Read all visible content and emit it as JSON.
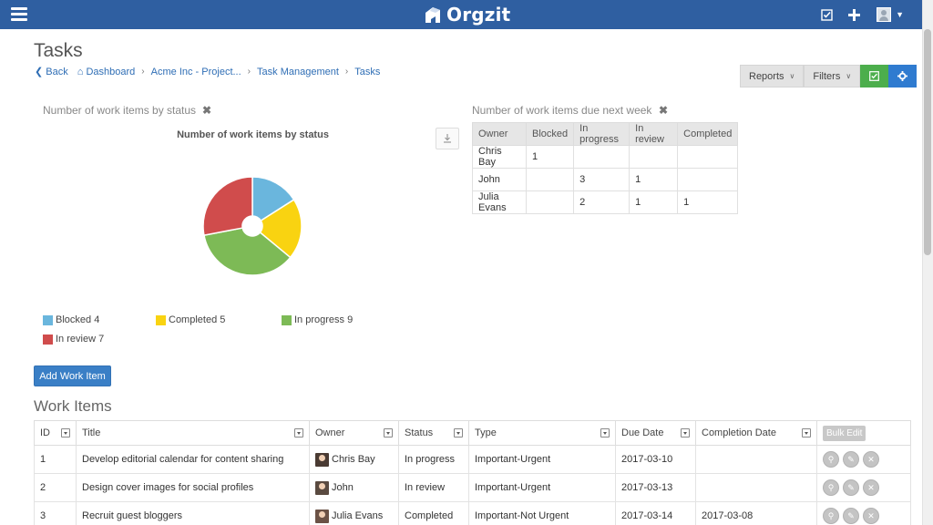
{
  "app": {
    "brand": "Orgzit"
  },
  "navbar": {
    "menu_icon": "hamburger-icon",
    "right_icons": [
      "checklist-icon",
      "plus-icon",
      "user-avatar-icon"
    ]
  },
  "page": {
    "title": "Tasks"
  },
  "breadcrumb": {
    "back": "Back",
    "items": [
      "Dashboard",
      "Acme Inc - Project...",
      "Task Management",
      "Tasks"
    ]
  },
  "toolbar": {
    "reports": "Reports",
    "filters": "Filters"
  },
  "status_widget": {
    "title": "Number of work items by status",
    "chart_data": {
      "type": "pie",
      "title": "Number of work items by status",
      "donut": true,
      "legend_position": "bottom",
      "series": [
        {
          "name": "Blocked",
          "value": 4,
          "color": "#6ab6dd"
        },
        {
          "name": "Completed",
          "value": 5,
          "color": "#f9d311"
        },
        {
          "name": "In progress",
          "value": 9,
          "color": "#7dba56"
        },
        {
          "name": "In review",
          "value": 7,
          "color": "#d04c4c"
        }
      ]
    }
  },
  "due_widget": {
    "title": "Number of work items due next week",
    "columns": [
      "Owner",
      "Blocked",
      "In progress",
      "In review",
      "Completed"
    ],
    "rows": [
      [
        "Chris Bay",
        "1",
        "",
        "",
        ""
      ],
      [
        "John",
        "",
        "3",
        "1",
        ""
      ],
      [
        "Julia Evans",
        "",
        "2",
        "1",
        "1"
      ]
    ]
  },
  "add_button": "Add Work Item",
  "work_items": {
    "title": "Work Items",
    "columns": [
      "ID",
      "Title",
      "Owner",
      "Status",
      "Type",
      "Due Date",
      "Completion Date"
    ],
    "bulk_edit": "Bulk Edit",
    "rows": [
      {
        "id": "1",
        "title": "Develop editorial calendar for content sharing",
        "owner": "Chris Bay",
        "owner_color": "#4a3b33",
        "status": "In progress",
        "type": "Important-Urgent",
        "due": "2017-03-10",
        "completion": ""
      },
      {
        "id": "2",
        "title": "Design cover images for social profiles",
        "owner": "John",
        "owner_color": "#5a4a40",
        "status": "In review",
        "type": "Important-Urgent",
        "due": "2017-03-13",
        "completion": ""
      },
      {
        "id": "3",
        "title": "Recruit guest bloggers",
        "owner": "Julia Evans",
        "owner_color": "#6b5246",
        "status": "Completed",
        "type": "Important-Not Urgent",
        "due": "2017-03-14",
        "completion": "2017-03-08"
      }
    ]
  }
}
